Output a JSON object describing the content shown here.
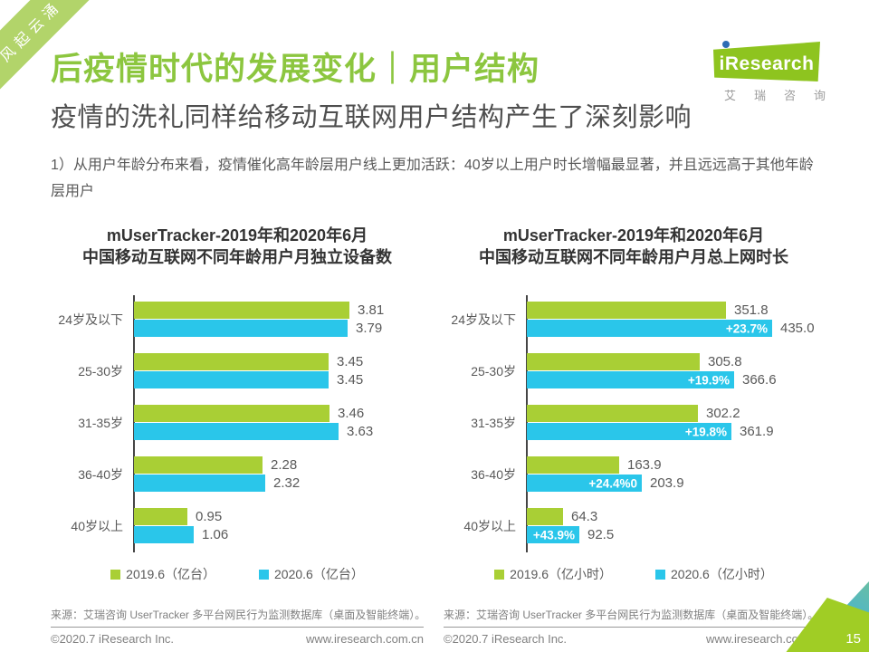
{
  "ribbon": {
    "text": "风起云涌"
  },
  "logo": {
    "brand": "iResearch",
    "caption": "艾瑞咨询"
  },
  "header": {
    "title": "后疫情时代的发展变化｜用户结构",
    "subtitle": "疫情的洗礼同样给移动互联网用户结构产生了深刻影响",
    "body": "1）从用户年龄分布来看，疫情催化高年龄层用户线上更加活跃：40岁以上用户时长增幅最显著，并且远远高于其他年龄层用户"
  },
  "colors": {
    "accent_green": "#8cc63f",
    "bar_green": "#a9cf35",
    "bar_cyan": "#2ac6ea",
    "ribbon_green": "#b2d46a",
    "logo_green": "#8ec41f",
    "logo_dot_blue": "#2e6db4",
    "axis": "#454545",
    "text_dark": "#4f4f4f",
    "text_gray": "#595959",
    "footer_gray": "#808080"
  },
  "chart_data": [
    {
      "type": "bar",
      "orientation": "horizontal",
      "title_line1": "mUserTracker-2019年和2020年6月",
      "title_line2": "中国移动互联网不同年龄用户月独立设备数",
      "categories": [
        "24岁及以下",
        "25-30岁",
        "31-35岁",
        "36-40岁",
        "40岁以上"
      ],
      "series": [
        {
          "name": "2019.6（亿台）",
          "color": "#a9cf35",
          "values": [
            3.81,
            3.45,
            3.46,
            2.28,
            0.95
          ],
          "labels": [
            "3.81",
            "3.45",
            "3.46",
            "2.28",
            "0.95"
          ]
        },
        {
          "name": "2020.6（亿台）",
          "color": "#2ac6ea",
          "values": [
            3.79,
            3.45,
            3.63,
            2.32,
            1.06
          ],
          "labels": [
            "3.79",
            "3.45",
            "3.63",
            "2.32",
            "1.06"
          ]
        }
      ],
      "xlim": [
        0,
        4.2
      ],
      "legend_position": "bottom",
      "grid": false,
      "source": "来源：艾瑞咨询 UserTracker 多平台网民行为监测数据库（桌面及智能终端）。"
    },
    {
      "type": "bar",
      "orientation": "horizontal",
      "title_line1": "mUserTracker-2019年和2020年6月",
      "title_line2": "中国移动互联网不同年龄用户月总上网时长",
      "categories": [
        "24岁及以下",
        "25-30岁",
        "31-35岁",
        "36-40岁",
        "40岁以上"
      ],
      "series": [
        {
          "name": "2019.6（亿小时）",
          "color": "#a9cf35",
          "values": [
            351.8,
            305.8,
            302.2,
            163.9,
            64.3
          ],
          "labels": [
            "351.8",
            "305.8",
            "302.2",
            "163.9",
            "64.3"
          ]
        },
        {
          "name": "2020.6（亿小时）",
          "color": "#2ac6ea",
          "values": [
            435.0,
            366.6,
            361.9,
            203.9,
            92.5
          ],
          "labels": [
            "435.0",
            "366.6",
            "361.9",
            "203.9",
            "92.5"
          ],
          "inside_labels": [
            "+23.7%",
            "+19.9%",
            "+19.8%",
            "+24.4%0",
            "+43.9%"
          ]
        }
      ],
      "xlim": [
        0,
        500
      ],
      "legend_position": "bottom",
      "grid": false,
      "source": "来源：艾瑞咨询 UserTracker 多平台网民行为监测数据库（桌面及智能终端）。"
    }
  ],
  "footer": {
    "copyright": "©2020.7 iResearch Inc.",
    "website": "www.iresearch.com.cn",
    "page": "15"
  }
}
